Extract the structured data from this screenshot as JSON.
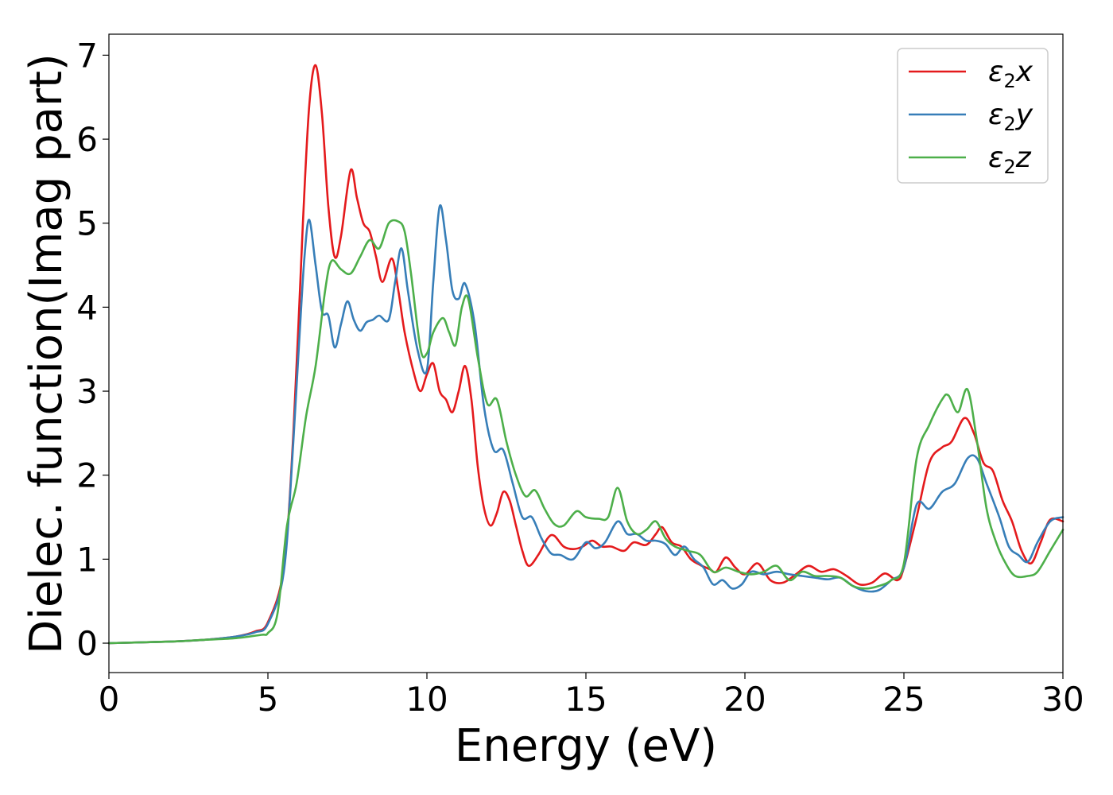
{
  "chart_data": {
    "type": "line",
    "xlabel": "Energy (eV)",
    "ylabel": "Dielec. function(Imag part)",
    "xlim": [
      0,
      30
    ],
    "ylim": [
      -0.35,
      7.25
    ],
    "xticks": [
      0,
      5,
      10,
      15,
      20,
      25,
      30
    ],
    "xtick_labels": [
      "0",
      "5",
      "10",
      "15",
      "20",
      "25",
      "30"
    ],
    "yticks": [
      0,
      1,
      2,
      3,
      4,
      5,
      6,
      7
    ],
    "ytick_labels": [
      "0",
      "1",
      "2",
      "3",
      "4",
      "5",
      "6",
      "7"
    ],
    "grid": false,
    "legend_position": "top-right",
    "series": [
      {
        "name": "ε2x",
        "legend_main": "ε",
        "legend_sub": "2",
        "legend_var": "x",
        "color": "#e41a1c",
        "points": [
          [
            0,
            0
          ],
          [
            2,
            0.02
          ],
          [
            3,
            0.04
          ],
          [
            4,
            0.08
          ],
          [
            4.6,
            0.14
          ],
          [
            5,
            0.25
          ],
          [
            5.5,
            0.9
          ],
          [
            5.8,
            2.5
          ],
          [
            6.1,
            5
          ],
          [
            6.3,
            6.4
          ],
          [
            6.5,
            6.88
          ],
          [
            6.7,
            6.3
          ],
          [
            6.9,
            5.2
          ],
          [
            7.1,
            4.6
          ],
          [
            7.3,
            4.85
          ],
          [
            7.6,
            5.63
          ],
          [
            7.8,
            5.3
          ],
          [
            8,
            5
          ],
          [
            8.2,
            4.9
          ],
          [
            8.4,
            4.6
          ],
          [
            8.6,
            4.3
          ],
          [
            8.9,
            4.58
          ],
          [
            9.1,
            4.2
          ],
          [
            9.3,
            3.7
          ],
          [
            9.6,
            3.2
          ],
          [
            9.8,
            3.0
          ],
          [
            10,
            3.2
          ],
          [
            10.2,
            3.33
          ],
          [
            10.4,
            3.0
          ],
          [
            10.6,
            2.9
          ],
          [
            10.8,
            2.75
          ],
          [
            11,
            3.0
          ],
          [
            11.2,
            3.3
          ],
          [
            11.4,
            2.9
          ],
          [
            11.6,
            2.1
          ],
          [
            11.8,
            1.6
          ],
          [
            12,
            1.4
          ],
          [
            12.2,
            1.55
          ],
          [
            12.4,
            1.8
          ],
          [
            12.6,
            1.7
          ],
          [
            12.8,
            1.4
          ],
          [
            13,
            1.1
          ],
          [
            13.2,
            0.92
          ],
          [
            13.5,
            1.05
          ],
          [
            13.8,
            1.25
          ],
          [
            14,
            1.28
          ],
          [
            14.3,
            1.15
          ],
          [
            14.6,
            1.12
          ],
          [
            14.9,
            1.15
          ],
          [
            15.2,
            1.22
          ],
          [
            15.5,
            1.15
          ],
          [
            15.8,
            1.15
          ],
          [
            16.2,
            1.1
          ],
          [
            16.5,
            1.2
          ],
          [
            16.9,
            1.17
          ],
          [
            17.2,
            1.3
          ],
          [
            17.4,
            1.38
          ],
          [
            17.7,
            1.2
          ],
          [
            18,
            1.15
          ],
          [
            18.3,
            1.0
          ],
          [
            18.6,
            0.93
          ],
          [
            18.9,
            0.88
          ],
          [
            19.1,
            0.85
          ],
          [
            19.4,
            1.02
          ],
          [
            19.7,
            0.9
          ],
          [
            20,
            0.82
          ],
          [
            20.4,
            0.95
          ],
          [
            20.8,
            0.75
          ],
          [
            21.2,
            0.72
          ],
          [
            21.6,
            0.82
          ],
          [
            22,
            0.92
          ],
          [
            22.4,
            0.85
          ],
          [
            22.8,
            0.88
          ],
          [
            23.2,
            0.8
          ],
          [
            23.6,
            0.7
          ],
          [
            24,
            0.72
          ],
          [
            24.4,
            0.83
          ],
          [
            24.8,
            0.75
          ],
          [
            25,
            0.9
          ],
          [
            25.4,
            1.5
          ],
          [
            25.8,
            2.15
          ],
          [
            26.2,
            2.33
          ],
          [
            26.5,
            2.4
          ],
          [
            26.9,
            2.68
          ],
          [
            27.2,
            2.5
          ],
          [
            27.5,
            2.15
          ],
          [
            27.8,
            2.05
          ],
          [
            28.1,
            1.7
          ],
          [
            28.4,
            1.45
          ],
          [
            28.7,
            1.1
          ],
          [
            29,
            0.95
          ],
          [
            29.3,
            1.2
          ],
          [
            29.6,
            1.47
          ],
          [
            30,
            1.45
          ]
        ]
      },
      {
        "name": "ε2y",
        "legend_main": "ε",
        "legend_sub": "2",
        "legend_var": "y",
        "color": "#377eb8",
        "points": [
          [
            0,
            0
          ],
          [
            2,
            0.02
          ],
          [
            3,
            0.04
          ],
          [
            4,
            0.08
          ],
          [
            4.6,
            0.13
          ],
          [
            5,
            0.23
          ],
          [
            5.5,
            0.85
          ],
          [
            5.8,
            2.4
          ],
          [
            6,
            3.7
          ],
          [
            6.15,
            4.6
          ],
          [
            6.3,
            5.04
          ],
          [
            6.5,
            4.5
          ],
          [
            6.7,
            3.95
          ],
          [
            6.9,
            3.9
          ],
          [
            7.1,
            3.52
          ],
          [
            7.3,
            3.8
          ],
          [
            7.5,
            4.07
          ],
          [
            7.7,
            3.85
          ],
          [
            7.9,
            3.72
          ],
          [
            8.1,
            3.82
          ],
          [
            8.3,
            3.85
          ],
          [
            8.5,
            3.9
          ],
          [
            8.8,
            3.85
          ],
          [
            9,
            4.3
          ],
          [
            9.2,
            4.7
          ],
          [
            9.4,
            4.2
          ],
          [
            9.7,
            3.5
          ],
          [
            10,
            3.25
          ],
          [
            10.2,
            4.3
          ],
          [
            10.4,
            5.2
          ],
          [
            10.6,
            4.8
          ],
          [
            10.8,
            4.2
          ],
          [
            11,
            4.1
          ],
          [
            11.2,
            4.28
          ],
          [
            11.5,
            3.8
          ],
          [
            11.8,
            2.8
          ],
          [
            12.1,
            2.3
          ],
          [
            12.4,
            2.3
          ],
          [
            12.7,
            1.9
          ],
          [
            13,
            1.5
          ],
          [
            13.3,
            1.5
          ],
          [
            13.6,
            1.25
          ],
          [
            13.9,
            1.07
          ],
          [
            14.2,
            1.05
          ],
          [
            14.6,
            1.0
          ],
          [
            15,
            1.2
          ],
          [
            15.3,
            1.13
          ],
          [
            15.6,
            1.2
          ],
          [
            16,
            1.45
          ],
          [
            16.3,
            1.3
          ],
          [
            16.6,
            1.3
          ],
          [
            16.9,
            1.22
          ],
          [
            17.2,
            1.22
          ],
          [
            17.5,
            1.18
          ],
          [
            17.8,
            1.05
          ],
          [
            18.1,
            1.15
          ],
          [
            18.4,
            1.0
          ],
          [
            18.7,
            0.9
          ],
          [
            19,
            0.7
          ],
          [
            19.3,
            0.75
          ],
          [
            19.6,
            0.65
          ],
          [
            19.9,
            0.7
          ],
          [
            20.2,
            0.85
          ],
          [
            20.6,
            0.82
          ],
          [
            21,
            0.85
          ],
          [
            21.4,
            0.82
          ],
          [
            21.8,
            0.8
          ],
          [
            22.2,
            0.78
          ],
          [
            22.6,
            0.76
          ],
          [
            23,
            0.78
          ],
          [
            23.4,
            0.68
          ],
          [
            23.8,
            0.62
          ],
          [
            24.2,
            0.63
          ],
          [
            24.6,
            0.75
          ],
          [
            25,
            0.9
          ],
          [
            25.4,
            1.65
          ],
          [
            25.8,
            1.6
          ],
          [
            26.2,
            1.8
          ],
          [
            26.6,
            1.9
          ],
          [
            27,
            2.2
          ],
          [
            27.3,
            2.2
          ],
          [
            27.6,
            1.9
          ],
          [
            28,
            1.5
          ],
          [
            28.3,
            1.15
          ],
          [
            28.6,
            1.05
          ],
          [
            28.9,
            0.97
          ],
          [
            29.2,
            1.2
          ],
          [
            29.6,
            1.45
          ],
          [
            30,
            1.5
          ]
        ]
      },
      {
        "name": "ε2z",
        "legend_main": "ε",
        "legend_sub": "2",
        "legend_var": "z",
        "color": "#4daf4a",
        "points": [
          [
            0,
            0
          ],
          [
            2,
            0.02
          ],
          [
            3,
            0.04
          ],
          [
            4,
            0.06
          ],
          [
            4.8,
            0.1
          ],
          [
            5,
            0.12
          ],
          [
            5.3,
            0.35
          ],
          [
            5.6,
            1.4
          ],
          [
            5.9,
            1.9
          ],
          [
            6.2,
            2.7
          ],
          [
            6.5,
            3.3
          ],
          [
            6.8,
            4.2
          ],
          [
            7,
            4.55
          ],
          [
            7.3,
            4.45
          ],
          [
            7.6,
            4.4
          ],
          [
            7.9,
            4.6
          ],
          [
            8.2,
            4.8
          ],
          [
            8.5,
            4.7
          ],
          [
            8.8,
            5.0
          ],
          [
            9.1,
            5.02
          ],
          [
            9.3,
            4.9
          ],
          [
            9.5,
            4.4
          ],
          [
            9.8,
            3.5
          ],
          [
            10,
            3.45
          ],
          [
            10.2,
            3.7
          ],
          [
            10.5,
            3.87
          ],
          [
            10.7,
            3.7
          ],
          [
            10.9,
            3.55
          ],
          [
            11.1,
            4.0
          ],
          [
            11.3,
            4.1
          ],
          [
            11.6,
            3.4
          ],
          [
            11.9,
            2.85
          ],
          [
            12.2,
            2.9
          ],
          [
            12.5,
            2.4
          ],
          [
            12.8,
            2.0
          ],
          [
            13.1,
            1.75
          ],
          [
            13.4,
            1.82
          ],
          [
            13.7,
            1.6
          ],
          [
            14,
            1.42
          ],
          [
            14.3,
            1.4
          ],
          [
            14.7,
            1.57
          ],
          [
            15,
            1.5
          ],
          [
            15.4,
            1.48
          ],
          [
            15.7,
            1.5
          ],
          [
            16,
            1.85
          ],
          [
            16.3,
            1.45
          ],
          [
            16.6,
            1.3
          ],
          [
            16.9,
            1.35
          ],
          [
            17.2,
            1.45
          ],
          [
            17.5,
            1.25
          ],
          [
            17.8,
            1.15
          ],
          [
            18.2,
            1.1
          ],
          [
            18.6,
            1.05
          ],
          [
            19,
            0.85
          ],
          [
            19.4,
            0.9
          ],
          [
            19.8,
            0.85
          ],
          [
            20.2,
            0.82
          ],
          [
            20.6,
            0.85
          ],
          [
            21,
            0.92
          ],
          [
            21.4,
            0.75
          ],
          [
            21.8,
            0.85
          ],
          [
            22.2,
            0.8
          ],
          [
            22.6,
            0.8
          ],
          [
            23,
            0.78
          ],
          [
            23.4,
            0.68
          ],
          [
            23.8,
            0.65
          ],
          [
            24.2,
            0.68
          ],
          [
            24.6,
            0.75
          ],
          [
            25,
            0.95
          ],
          [
            25.4,
            2.2
          ],
          [
            25.8,
            2.6
          ],
          [
            26.2,
            2.9
          ],
          [
            26.4,
            2.95
          ],
          [
            26.7,
            2.75
          ],
          [
            27,
            3.02
          ],
          [
            27.3,
            2.4
          ],
          [
            27.6,
            1.6
          ],
          [
            27.9,
            1.2
          ],
          [
            28.2,
            0.95
          ],
          [
            28.5,
            0.8
          ],
          [
            28.9,
            0.8
          ],
          [
            29.2,
            0.85
          ],
          [
            29.6,
            1.1
          ],
          [
            30,
            1.35
          ]
        ]
      }
    ]
  }
}
